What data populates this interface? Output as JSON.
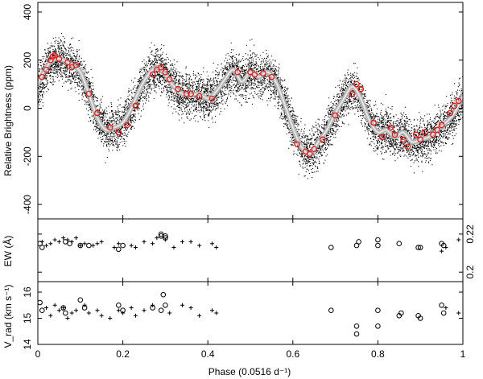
{
  "chart_data": [
    {
      "type": "scatter",
      "panel": "top",
      "ylabel": "Relative Brightness (ppm)",
      "xlim": [
        0,
        1
      ],
      "ylim": [
        -460,
        440
      ],
      "yticks": [
        -400,
        -200,
        0,
        200,
        400
      ],
      "grid": false,
      "model_curve": {
        "x": [
          0.0,
          0.02,
          0.04,
          0.06,
          0.08,
          0.1,
          0.12,
          0.14,
          0.16,
          0.18,
          0.2,
          0.22,
          0.24,
          0.26,
          0.28,
          0.3,
          0.32,
          0.34,
          0.36,
          0.38,
          0.4,
          0.42,
          0.44,
          0.46,
          0.48,
          0.5,
          0.52,
          0.54,
          0.56,
          0.58,
          0.6,
          0.62,
          0.64,
          0.66,
          0.68,
          0.7,
          0.72,
          0.74,
          0.76,
          0.78,
          0.8,
          0.82,
          0.84,
          0.86,
          0.88,
          0.9,
          0.92,
          0.94,
          0.96,
          0.98,
          1.0
        ],
        "y": [
          100,
          170,
          205,
          200,
          180,
          150,
          60,
          -40,
          -90,
          -80,
          -60,
          0,
          80,
          140,
          170,
          140,
          90,
          60,
          55,
          60,
          40,
          70,
          120,
          160,
          110,
          150,
          130,
          150,
          110,
          20,
          -80,
          -160,
          -190,
          -140,
          -90,
          -20,
          40,
          90,
          40,
          -50,
          -100,
          -90,
          -120,
          -100,
          -140,
          -130,
          -120,
          -90,
          -60,
          -20,
          50
        ]
      },
      "red_points": [
        [
          0.01,
          130
        ],
        [
          0.02,
          160
        ],
        [
          0.03,
          200
        ],
        [
          0.035,
          215
        ],
        [
          0.04,
          220
        ],
        [
          0.05,
          205
        ],
        [
          0.07,
          190
        ],
        [
          0.08,
          170
        ],
        [
          0.09,
          180
        ],
        [
          0.12,
          60
        ],
        [
          0.14,
          -20
        ],
        [
          0.17,
          -80
        ],
        [
          0.19,
          -100
        ],
        [
          0.21,
          -70
        ],
        [
          0.23,
          10
        ],
        [
          0.27,
          140
        ],
        [
          0.28,
          160
        ],
        [
          0.29,
          170
        ],
        [
          0.3,
          150
        ],
        [
          0.31,
          120
        ],
        [
          0.33,
          80
        ],
        [
          0.35,
          60
        ],
        [
          0.36,
          60
        ],
        [
          0.38,
          50
        ],
        [
          0.41,
          40
        ],
        [
          0.47,
          150
        ],
        [
          0.5,
          150
        ],
        [
          0.51,
          140
        ],
        [
          0.53,
          145
        ],
        [
          0.55,
          130
        ],
        [
          0.61,
          -150
        ],
        [
          0.63,
          -180
        ],
        [
          0.64,
          -190
        ],
        [
          0.65,
          -170
        ],
        [
          0.67,
          -130
        ],
        [
          0.7,
          -30
        ],
        [
          0.74,
          60
        ],
        [
          0.75,
          100
        ],
        [
          0.76,
          80
        ],
        [
          0.79,
          -60
        ],
        [
          0.81,
          -120
        ],
        [
          0.83,
          -80
        ],
        [
          0.84,
          -110
        ],
        [
          0.86,
          -130
        ],
        [
          0.87,
          -160
        ],
        [
          0.89,
          -110
        ],
        [
          0.9,
          -130
        ],
        [
          0.91,
          -100
        ],
        [
          0.93,
          -110
        ],
        [
          0.94,
          -90
        ],
        [
          0.95,
          -70
        ],
        [
          0.97,
          -20
        ],
        [
          0.98,
          10
        ],
        [
          0.99,
          30
        ]
      ]
    },
    {
      "type": "scatter",
      "panel": "middle",
      "ylabel": "EW (Å)",
      "xlim": [
        0,
        1
      ],
      "ylim": [
        0.195,
        0.228
      ],
      "yticks": [
        0.2,
        0.22
      ],
      "plus_points": [
        [
          0.01,
          0.216
        ],
        [
          0.02,
          0.214
        ],
        [
          0.03,
          0.215
        ],
        [
          0.04,
          0.217
        ],
        [
          0.05,
          0.216
        ],
        [
          0.06,
          0.218
        ],
        [
          0.07,
          0.217
        ],
        [
          0.08,
          0.216
        ],
        [
          0.09,
          0.218
        ],
        [
          0.1,
          0.214
        ],
        [
          0.11,
          0.215
        ],
        [
          0.13,
          0.214
        ],
        [
          0.14,
          0.215
        ],
        [
          0.15,
          0.216
        ],
        [
          0.18,
          0.213
        ],
        [
          0.19,
          0.215
        ],
        [
          0.22,
          0.214
        ],
        [
          0.23,
          0.213
        ],
        [
          0.25,
          0.216
        ],
        [
          0.27,
          0.215
        ],
        [
          0.28,
          0.218
        ],
        [
          0.3,
          0.217
        ],
        [
          0.32,
          0.213
        ],
        [
          0.34,
          0.216
        ],
        [
          0.36,
          0.216
        ],
        [
          0.38,
          0.214
        ],
        [
          0.41,
          0.215
        ],
        [
          0.42,
          0.213
        ],
        [
          0.95,
          0.211
        ],
        [
          0.96,
          0.213
        ],
        [
          0.99,
          0.217
        ]
      ],
      "circle_points": [
        [
          0.005,
          0.215
        ],
        [
          0.01,
          0.213
        ],
        [
          0.065,
          0.216
        ],
        [
          0.075,
          0.215
        ],
        [
          0.1,
          0.214
        ],
        [
          0.12,
          0.214
        ],
        [
          0.19,
          0.212
        ],
        [
          0.2,
          0.214
        ],
        [
          0.29,
          0.219
        ],
        [
          0.29,
          0.22
        ],
        [
          0.3,
          0.218
        ],
        [
          0.3,
          0.219
        ],
        [
          0.69,
          0.213
        ],
        [
          0.75,
          0.214
        ],
        [
          0.755,
          0.216
        ],
        [
          0.8,
          0.217
        ],
        [
          0.8,
          0.214
        ],
        [
          0.85,
          0.215
        ],
        [
          0.895,
          0.213
        ],
        [
          0.9,
          0.213
        ],
        [
          0.95,
          0.215
        ],
        [
          0.955,
          0.214
        ]
      ]
    },
    {
      "type": "scatter",
      "panel": "bottom",
      "ylabel": "V_rad (km s⁻¹)",
      "xlabel": "Phase (0.0516 d⁻¹)",
      "xlim": [
        0,
        1
      ],
      "xticks": [
        0,
        0.2,
        0.4,
        0.6,
        0.8,
        1
      ],
      "ylim": [
        14,
        16.4
      ],
      "yticks": [
        14,
        15,
        16
      ],
      "plus_points": [
        [
          0.02,
          15.4
        ],
        [
          0.03,
          15.1
        ],
        [
          0.04,
          15.5
        ],
        [
          0.05,
          15.3
        ],
        [
          0.06,
          15.4
        ],
        [
          0.07,
          15.0
        ],
        [
          0.08,
          15.2
        ],
        [
          0.09,
          15.3
        ],
        [
          0.11,
          15.5
        ],
        [
          0.12,
          15.2
        ],
        [
          0.14,
          15.3
        ],
        [
          0.15,
          15.1
        ],
        [
          0.17,
          15.0
        ],
        [
          0.19,
          15.3
        ],
        [
          0.2,
          15.2
        ],
        [
          0.22,
          15.4
        ],
        [
          0.23,
          15.1
        ],
        [
          0.25,
          15.3
        ],
        [
          0.27,
          15.5
        ],
        [
          0.31,
          15.2
        ],
        [
          0.34,
          15.5
        ],
        [
          0.36,
          15.4
        ],
        [
          0.38,
          15.1
        ],
        [
          0.41,
          15.3
        ],
        [
          0.42,
          15.2
        ],
        [
          0.96,
          15.4
        ],
        [
          0.99,
          15.2
        ]
      ],
      "circle_points": [
        [
          0.005,
          15.6
        ],
        [
          0.01,
          15.3
        ],
        [
          0.06,
          15.4
        ],
        [
          0.065,
          15.2
        ],
        [
          0.1,
          15.7
        ],
        [
          0.11,
          15.4
        ],
        [
          0.19,
          15.5
        ],
        [
          0.2,
          15.3
        ],
        [
          0.27,
          15.4
        ],
        [
          0.29,
          15.3
        ],
        [
          0.295,
          15.9
        ],
        [
          0.3,
          15.5
        ],
        [
          0.69,
          15.3
        ],
        [
          0.75,
          14.7
        ],
        [
          0.75,
          14.4
        ],
        [
          0.8,
          15.3
        ],
        [
          0.8,
          14.7
        ],
        [
          0.85,
          15.1
        ],
        [
          0.855,
          15.2
        ],
        [
          0.895,
          15.1
        ],
        [
          0.9,
          15.0
        ],
        [
          0.95,
          15.5
        ],
        [
          0.955,
          15.2
        ]
      ]
    }
  ],
  "colors": {
    "noise": "#000000",
    "model_outer": "#b3b3b3",
    "model_inner": "#e6e6e6",
    "binned": "#e21a1a"
  }
}
